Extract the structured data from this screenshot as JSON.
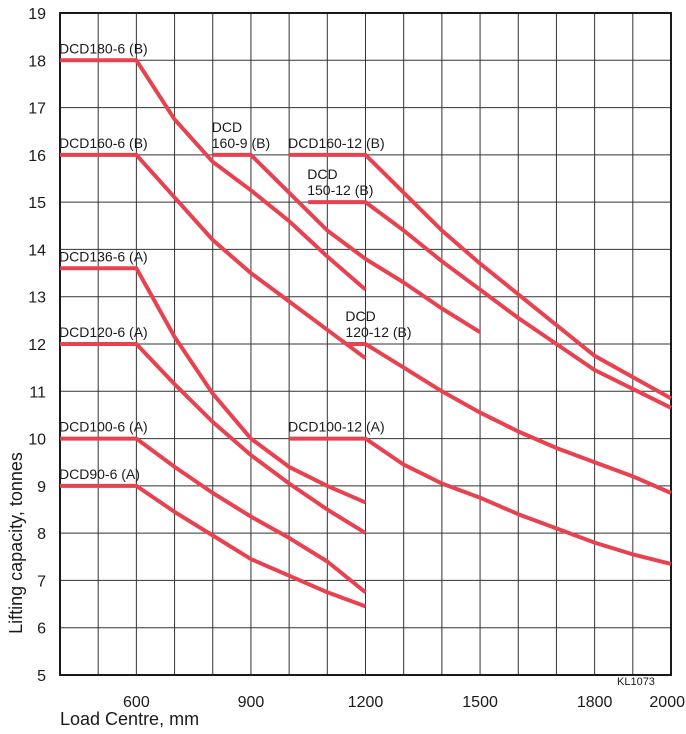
{
  "chart_data": {
    "type": "line",
    "xlabel": "Load Centre, mm",
    "ylabel": "Lifting capacity, tonnes",
    "code": "KL1073",
    "xlim": [
      400,
      2000
    ],
    "ylim": [
      5,
      19
    ],
    "xticks": [
      600,
      900,
      1200,
      1500,
      1800,
      2000
    ],
    "yticks": [
      5,
      6,
      7,
      8,
      9,
      10,
      11,
      12,
      13,
      14,
      15,
      16,
      17,
      18,
      19
    ],
    "grid": true,
    "line_color": "#e8414f",
    "series": [
      {
        "name": "DCD180-6 (B)",
        "label_lines": [
          "DCD180-6 (B)"
        ],
        "points": [
          [
            400,
            18
          ],
          [
            600,
            18
          ],
          [
            700,
            16.75
          ],
          [
            800,
            15.85
          ],
          [
            900,
            15.25
          ],
          [
            1000,
            14.6
          ],
          [
            1100,
            13.85
          ],
          [
            1200,
            13.15
          ]
        ]
      },
      {
        "name": "DCD160-6 (B)",
        "label_lines": [
          "DCD160-6 (B)"
        ],
        "points": [
          [
            400,
            16
          ],
          [
            600,
            16
          ],
          [
            700,
            15.1
          ],
          [
            800,
            14.2
          ],
          [
            900,
            13.5
          ],
          [
            1000,
            12.9
          ],
          [
            1100,
            12.3
          ],
          [
            1200,
            11.7
          ]
        ]
      },
      {
        "name": "DCD160-9 (B)",
        "label_lines": [
          "DCD",
          "160-9 (B)"
        ],
        "points": [
          [
            800,
            16
          ],
          [
            900,
            16
          ],
          [
            1000,
            15.2
          ],
          [
            1100,
            14.4
          ],
          [
            1200,
            13.8
          ],
          [
            1300,
            13.3
          ],
          [
            1400,
            12.75
          ],
          [
            1500,
            12.25
          ]
        ]
      },
      {
        "name": "DCD160-12 (B)",
        "label_lines": [
          "DCD160-12 (B)"
        ],
        "points": [
          [
            1000,
            16
          ],
          [
            1200,
            16
          ],
          [
            1300,
            15.2
          ],
          [
            1400,
            14.4
          ],
          [
            1500,
            13.7
          ],
          [
            1600,
            13.05
          ],
          [
            1700,
            12.4
          ],
          [
            1800,
            11.75
          ],
          [
            1900,
            11.3
          ],
          [
            2000,
            10.85
          ]
        ]
      },
      {
        "name": "DCD150-12 (B)",
        "label_lines": [
          "DCD",
          "150-12 (B)"
        ],
        "points": [
          [
            1050,
            15
          ],
          [
            1200,
            15
          ],
          [
            1300,
            14.4
          ],
          [
            1400,
            13.75
          ],
          [
            1500,
            13.15
          ],
          [
            1600,
            12.55
          ],
          [
            1700,
            12
          ],
          [
            1800,
            11.45
          ],
          [
            1900,
            11.05
          ],
          [
            2000,
            10.65
          ]
        ]
      },
      {
        "name": "DCD136-6 (A)",
        "label_lines": [
          "DCD136-6 (A)"
        ],
        "points": [
          [
            400,
            13.6
          ],
          [
            600,
            13.6
          ],
          [
            700,
            12.15
          ],
          [
            800,
            10.95
          ],
          [
            900,
            10
          ],
          [
            1000,
            9.4
          ],
          [
            1100,
            9
          ],
          [
            1200,
            8.65
          ]
        ]
      },
      {
        "name": "DCD120-6 (A)",
        "label_lines": [
          "DCD120-6 (A)"
        ],
        "points": [
          [
            400,
            12
          ],
          [
            600,
            12
          ],
          [
            700,
            11.15
          ],
          [
            800,
            10.35
          ],
          [
            900,
            9.65
          ],
          [
            1000,
            9.05
          ],
          [
            1100,
            8.5
          ],
          [
            1200,
            8
          ]
        ]
      },
      {
        "name": "DCD120-12 (B)",
        "label_lines": [
          "DCD",
          "120-12 (B)"
        ],
        "points": [
          [
            1150,
            12
          ],
          [
            1200,
            12
          ],
          [
            1300,
            11.5
          ],
          [
            1400,
            11
          ],
          [
            1500,
            10.55
          ],
          [
            1600,
            10.15
          ],
          [
            1700,
            9.8
          ],
          [
            1800,
            9.5
          ],
          [
            1900,
            9.2
          ],
          [
            2000,
            8.85
          ]
        ]
      },
      {
        "name": "DCD100-6 (A)",
        "label_lines": [
          "DCD100-6 (A)"
        ],
        "points": [
          [
            400,
            10
          ],
          [
            600,
            10
          ],
          [
            700,
            9.4
          ],
          [
            800,
            8.85
          ],
          [
            900,
            8.35
          ],
          [
            1000,
            7.9
          ],
          [
            1100,
            7.4
          ],
          [
            1200,
            6.75
          ]
        ]
      },
      {
        "name": "DCD100-12 (A)",
        "label_lines": [
          "DCD100-12 (A)"
        ],
        "points": [
          [
            1000,
            10
          ],
          [
            1200,
            10
          ],
          [
            1300,
            9.45
          ],
          [
            1400,
            9.05
          ],
          [
            1500,
            8.75
          ],
          [
            1600,
            8.4
          ],
          [
            1700,
            8.1
          ],
          [
            1800,
            7.8
          ],
          [
            1900,
            7.55
          ],
          [
            2000,
            7.35
          ]
        ]
      },
      {
        "name": "DCD90-6 (A)",
        "label_lines": [
          "DCD90-6 (A)"
        ],
        "points": [
          [
            400,
            9
          ],
          [
            600,
            9
          ],
          [
            700,
            8.45
          ],
          [
            800,
            7.95
          ],
          [
            900,
            7.45
          ],
          [
            1000,
            7.1
          ],
          [
            1100,
            6.75
          ],
          [
            1200,
            6.45
          ]
        ]
      }
    ]
  }
}
